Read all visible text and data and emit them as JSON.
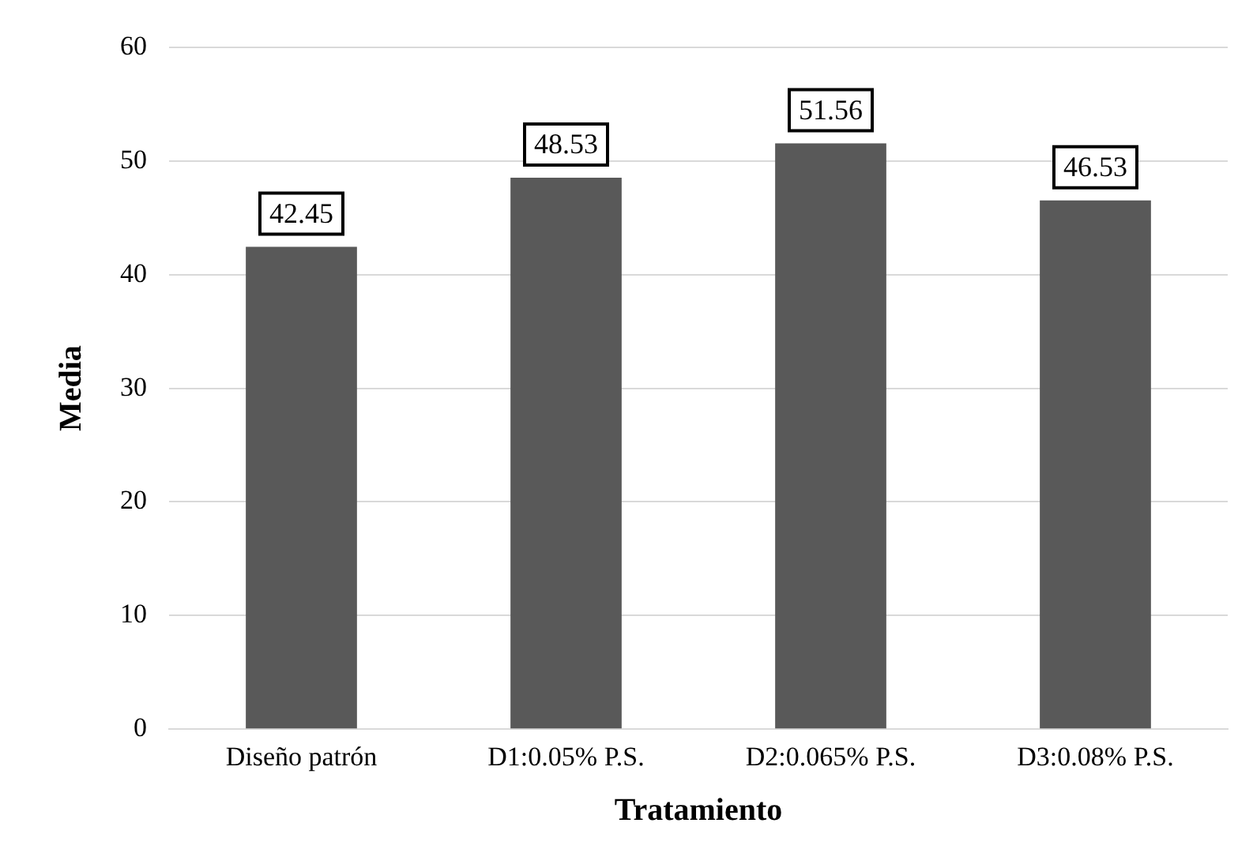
{
  "chart_data": {
    "type": "bar",
    "xlabel": "Tratamiento",
    "ylabel": "Media",
    "categories": [
      "Diseño patrón",
      "D1:0.05% P.S.",
      "D2:0.065% P.S.",
      "D3:0.08% P.S."
    ],
    "values": [
      42.45,
      48.53,
      51.56,
      46.53
    ],
    "color": "#595959",
    "ylim": [
      0,
      60
    ],
    "yticks": [
      0,
      10,
      20,
      30,
      40,
      50,
      60
    ],
    "grid": "y",
    "data_labels": true,
    "legend": false
  }
}
